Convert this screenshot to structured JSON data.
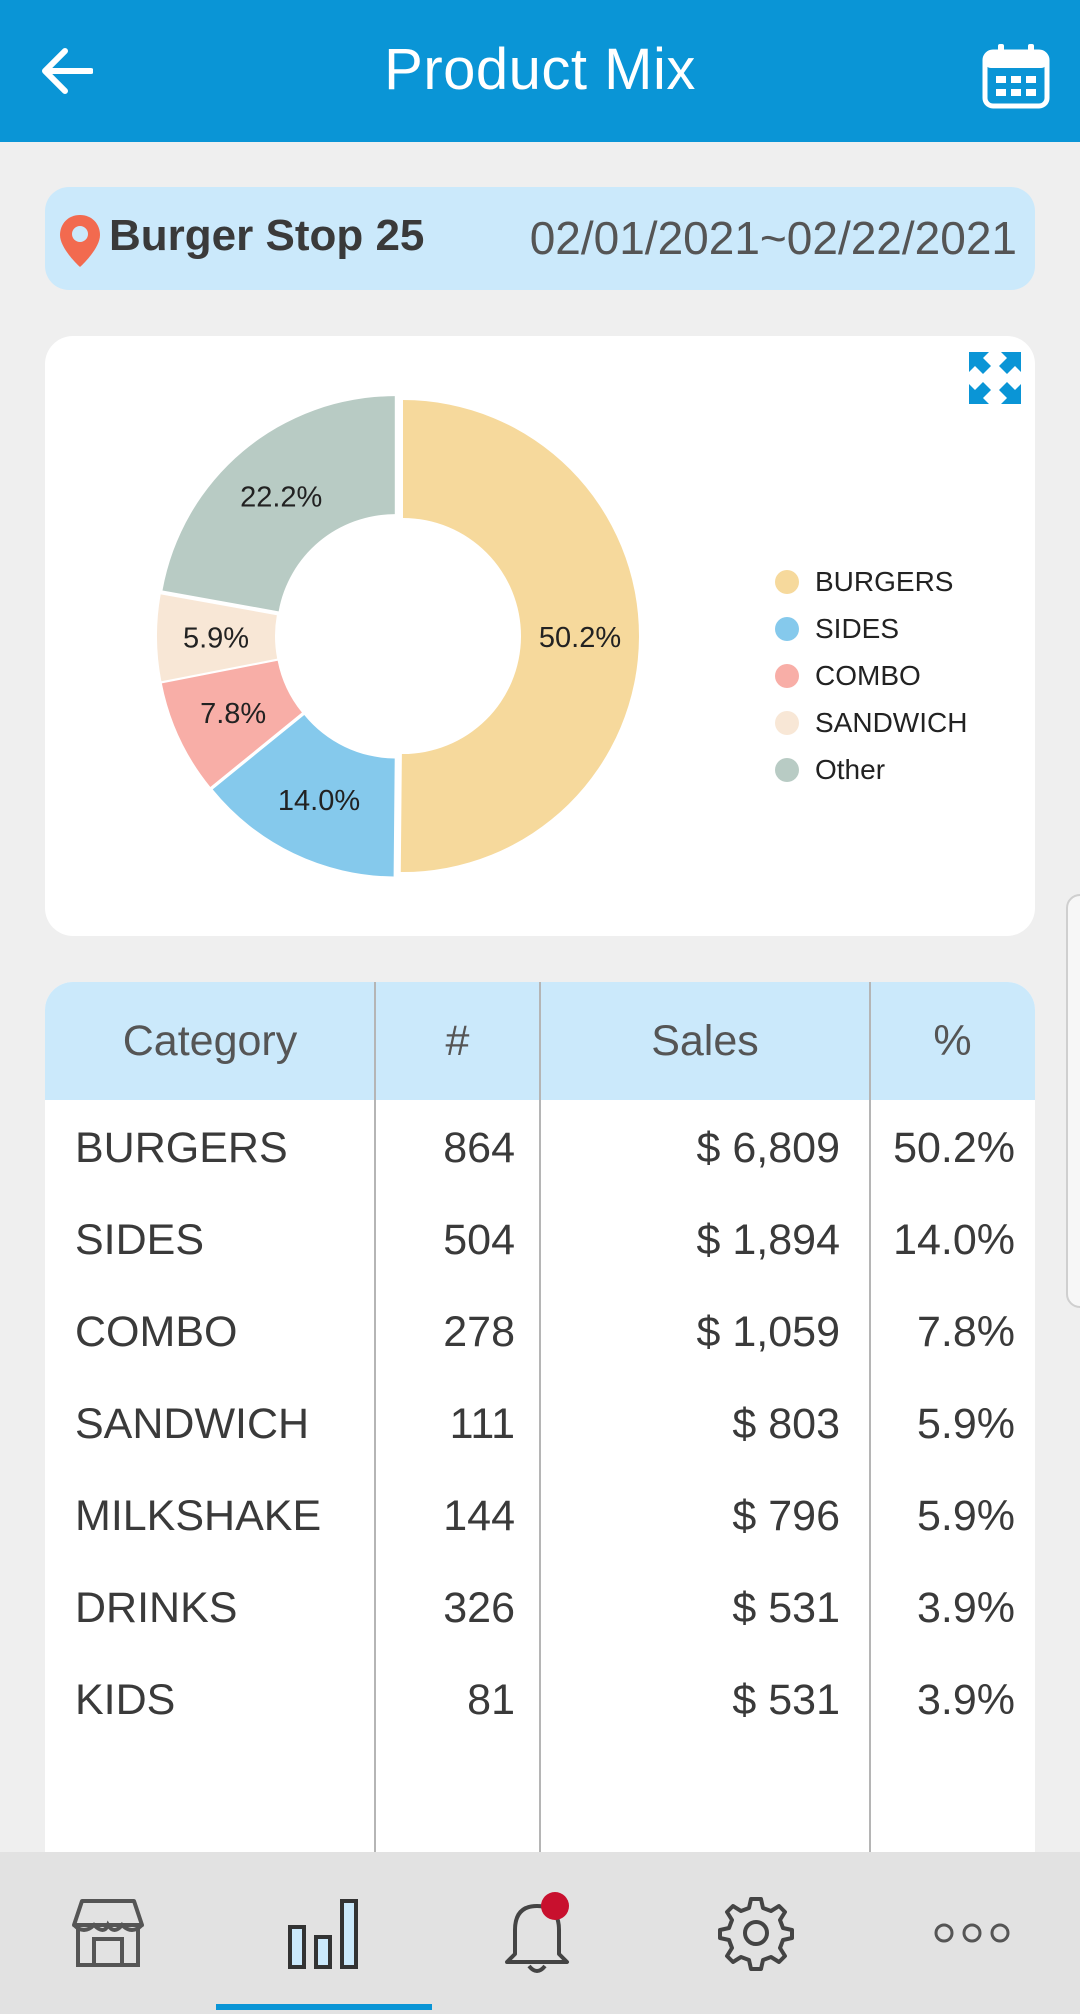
{
  "header": {
    "title": "Product Mix",
    "back_icon": "arrow-left-icon",
    "calendar_icon": "calendar-icon"
  },
  "location": {
    "store_name": "Burger Stop 25",
    "date_range": "02/01/2021~02/22/2021"
  },
  "chart_data": {
    "type": "pie",
    "donut": true,
    "categories": [
      "BURGERS",
      "SIDES",
      "COMBO",
      "SANDWICH",
      "Other"
    ],
    "values": [
      50.2,
      14.0,
      7.8,
      5.9,
      22.2
    ],
    "labels": [
      "50.2%",
      "14.0%",
      "7.8%",
      "5.9%",
      "22.2%"
    ],
    "colors": [
      "#f6d99c",
      "#85c9ec",
      "#f8aea7",
      "#f8e7d6",
      "#b8cbc4"
    ],
    "legend_position": "right"
  },
  "table": {
    "headers": [
      "Category",
      "#",
      "Sales",
      "%"
    ],
    "rows": [
      {
        "category": "BURGERS",
        "count": "864",
        "sales": "$ 6,809",
        "pct": "50.2%"
      },
      {
        "category": "SIDES",
        "count": "504",
        "sales": "$ 1,894",
        "pct": "14.0%"
      },
      {
        "category": "COMBO",
        "count": "278",
        "sales": "$ 1,059",
        "pct": "7.8%"
      },
      {
        "category": "SANDWICH",
        "count": "111",
        "sales": "$ 803",
        "pct": "5.9%"
      },
      {
        "category": "MILKSHAKE",
        "count": "144",
        "sales": "$ 796",
        "pct": "5.9%"
      },
      {
        "category": "DRINKS",
        "count": "326",
        "sales": "$ 531",
        "pct": "3.9%"
      },
      {
        "category": "KIDS",
        "count": "81",
        "sales": "$ 531",
        "pct": "3.9%"
      }
    ]
  },
  "nav": {
    "items": [
      "store-icon",
      "bar-chart-icon",
      "bell-icon",
      "gear-icon",
      "more-icon"
    ],
    "active_index": 1,
    "accent": "#0a95d6",
    "notification_color": "#c8102e"
  }
}
